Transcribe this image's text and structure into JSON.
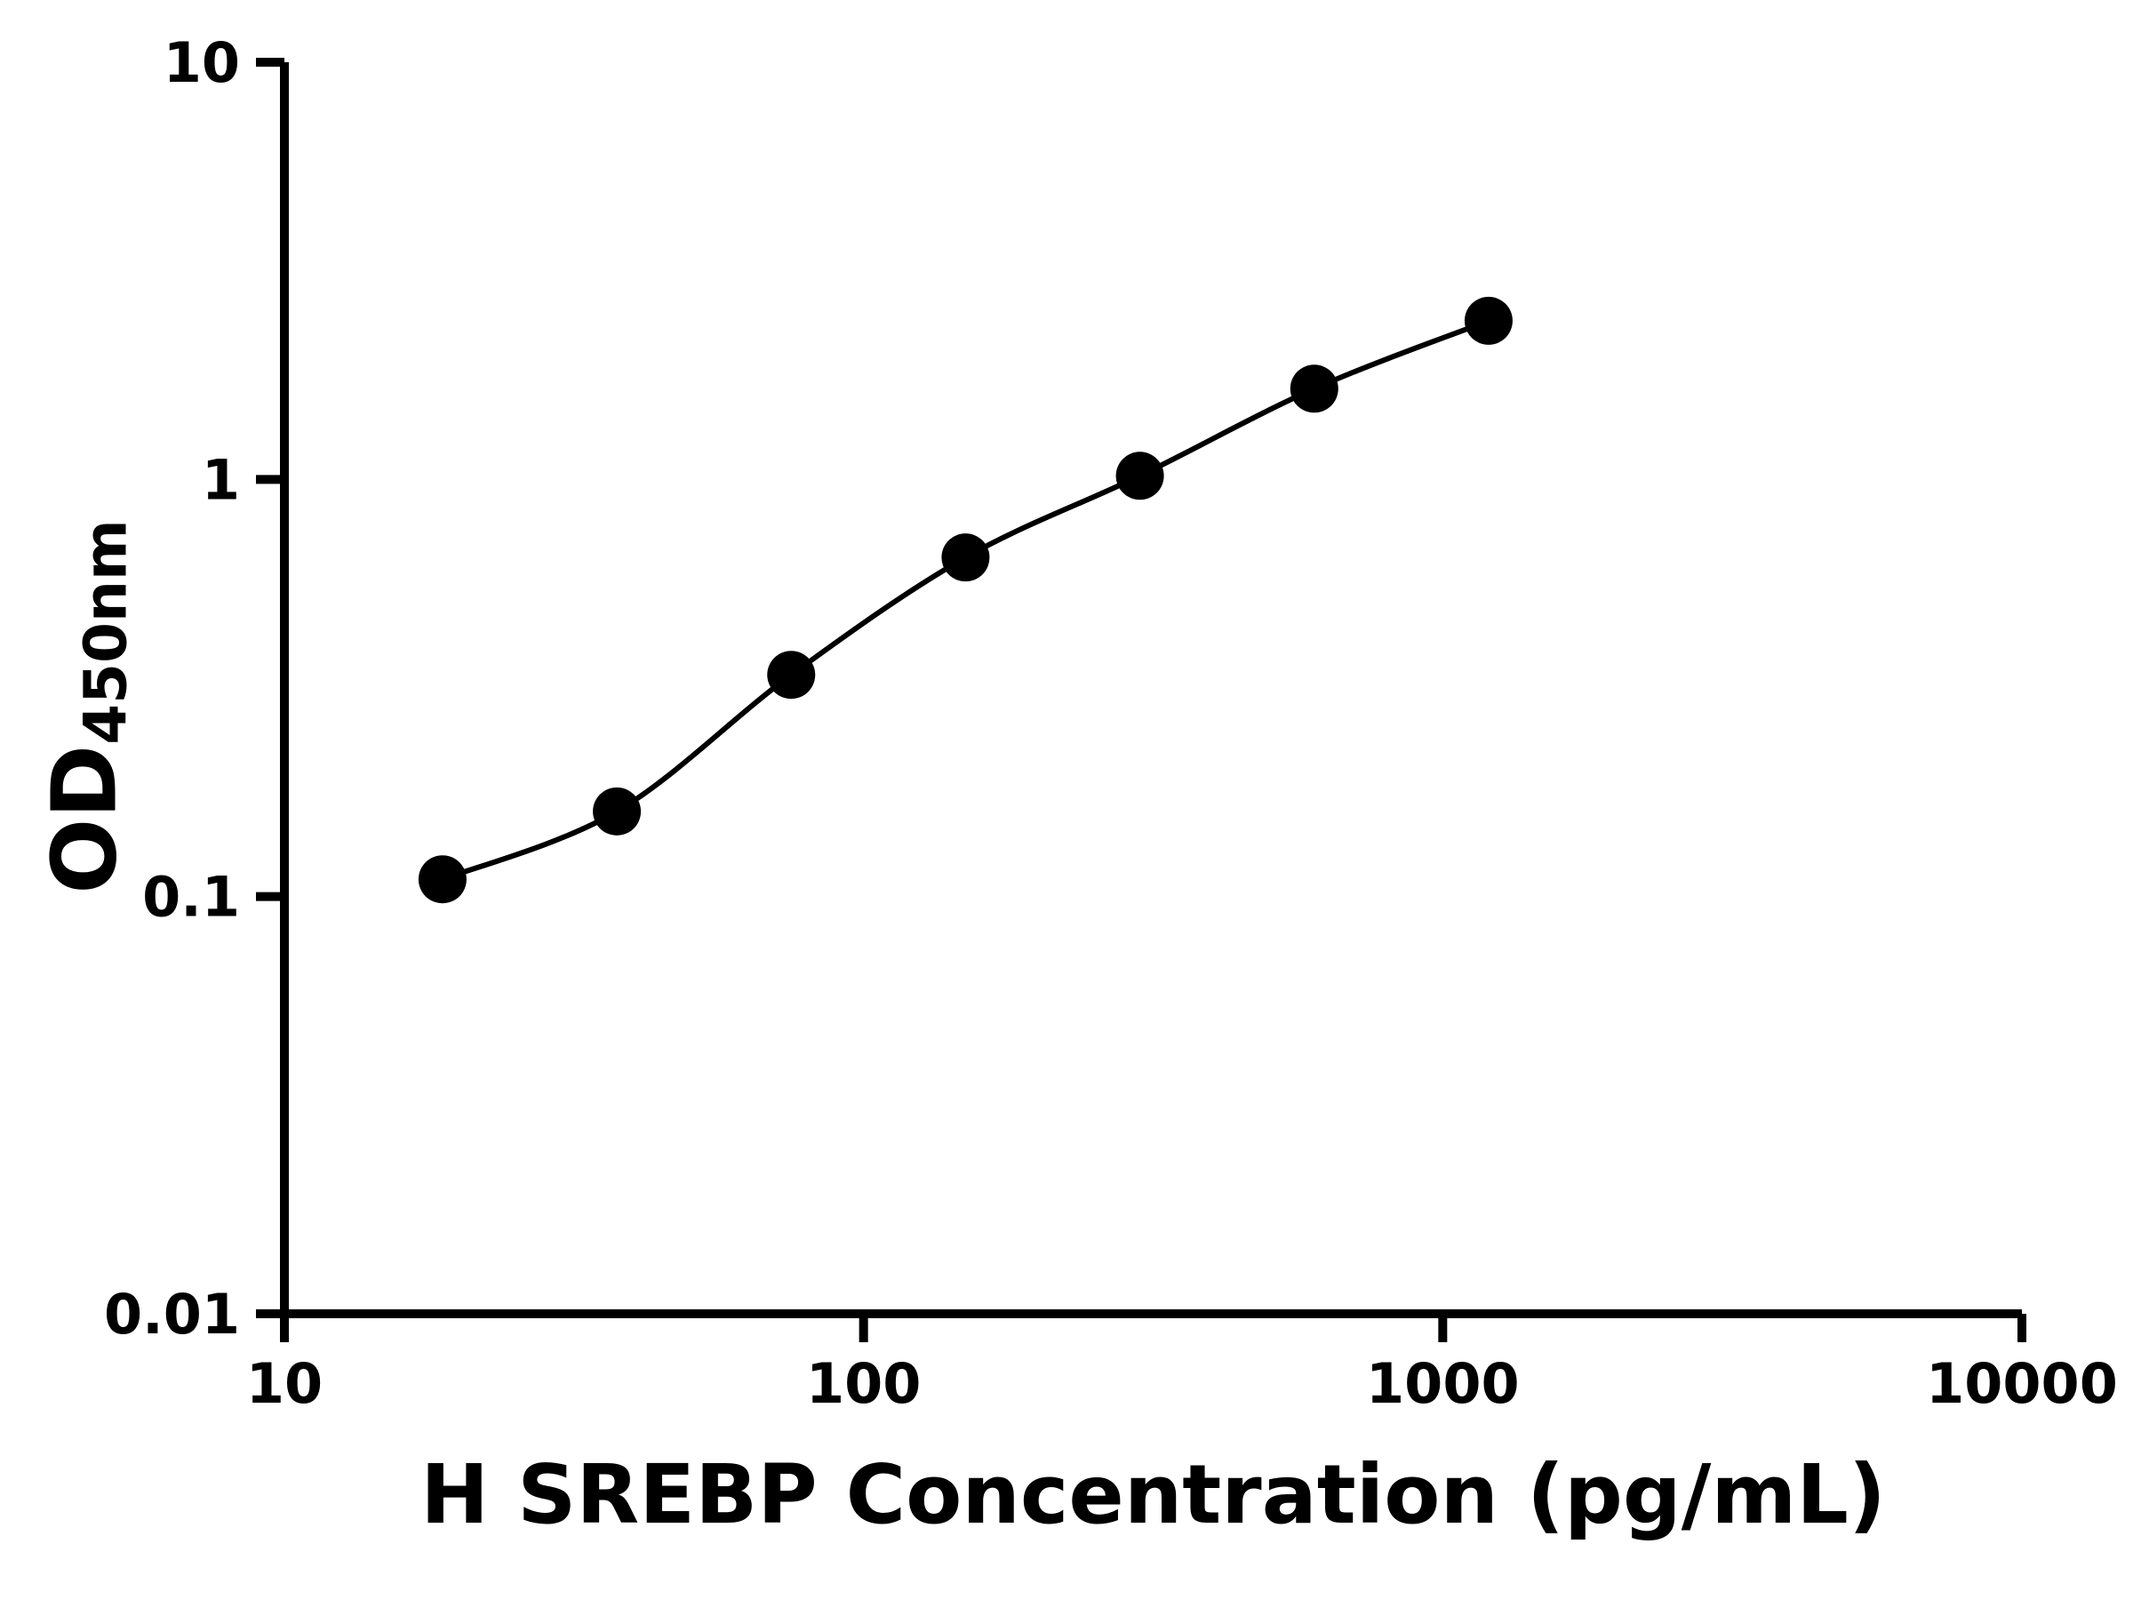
{
  "chart_data": {
    "type": "scatter",
    "title": "",
    "xlabel": "H SREBP Concentration (pg/mL)",
    "ylabel": "OD",
    "ylabel_subscript": "450nm",
    "x": [
      18.75,
      37.5,
      75,
      150,
      300,
      600,
      1200
    ],
    "y": [
      0.11,
      0.16,
      0.34,
      0.65,
      1.02,
      1.65,
      2.4
    ],
    "x_scale": "log",
    "y_scale": "log",
    "xlim": [
      10,
      10000
    ],
    "ylim": [
      0.01,
      10
    ],
    "x_ticks": [
      10,
      100,
      1000,
      10000
    ],
    "x_tick_labels": [
      "10",
      "100",
      "1000",
      "10000"
    ],
    "y_ticks": [
      0.01,
      0.1,
      1,
      10
    ],
    "y_tick_labels": [
      "0.01",
      "0.1",
      "1",
      "10"
    ],
    "marker_color": "#000000",
    "line_color": "#000000",
    "axis_color": "#000000",
    "grid": false,
    "legend": false
  }
}
